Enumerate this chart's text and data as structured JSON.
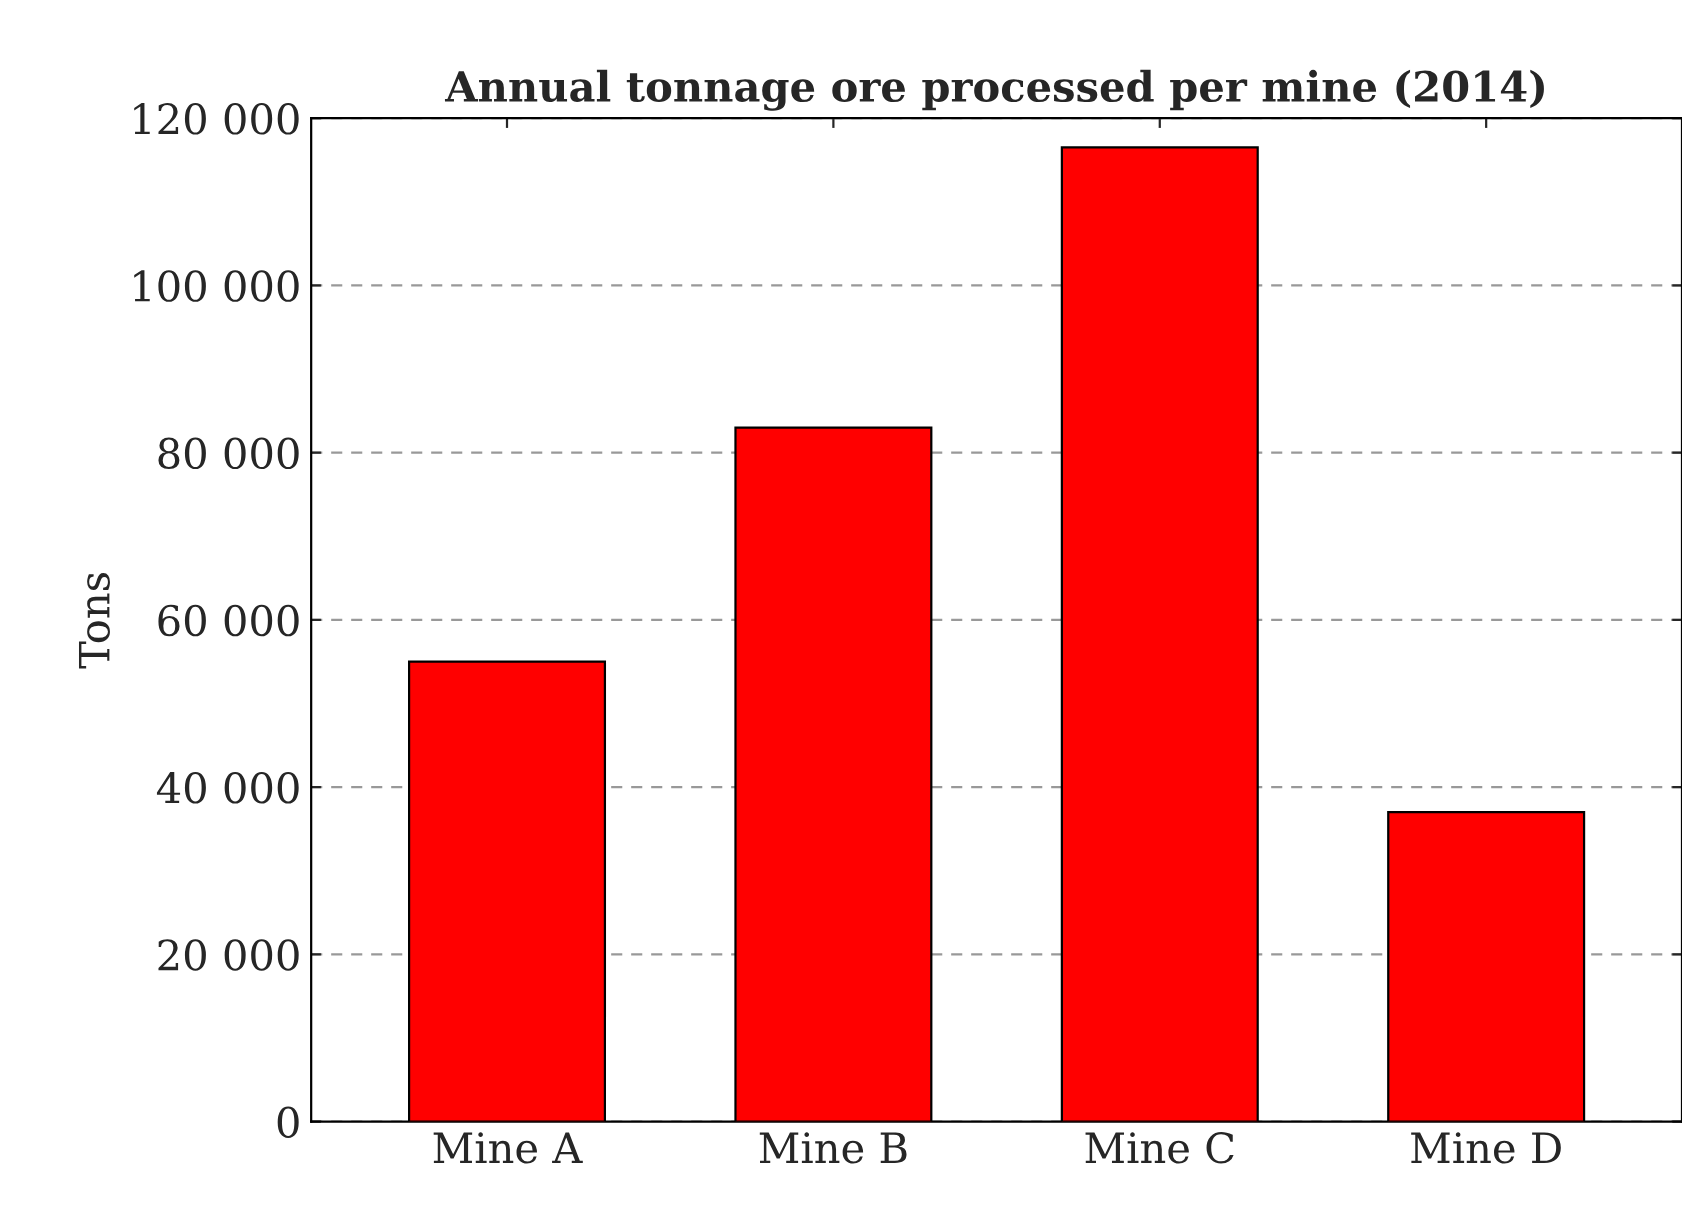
{
  "chart_data": {
    "type": "bar",
    "title": "Annual tonnage ore processed per mine (2014)",
    "ylabel": "Tons",
    "categories": [
      "Mine A",
      "Mine B",
      "Mine C",
      "Mine D"
    ],
    "values": [
      55000,
      83000,
      116500,
      37000
    ],
    "color": "#ff0000",
    "ylim": [
      0,
      120000
    ],
    "yticks": [
      0,
      {
        "value": 20000,
        "label": "20 000"
      },
      {
        "value": 40000,
        "label": "40 000"
      },
      {
        "value": 60000,
        "label": "60 000"
      },
      {
        "value": 80000,
        "label": "80 000"
      },
      {
        "value": 100000,
        "label": "100 000"
      },
      {
        "value": 120000,
        "label": "120 000"
      }
    ],
    "grid": "y",
    "line_style": "dashed"
  }
}
